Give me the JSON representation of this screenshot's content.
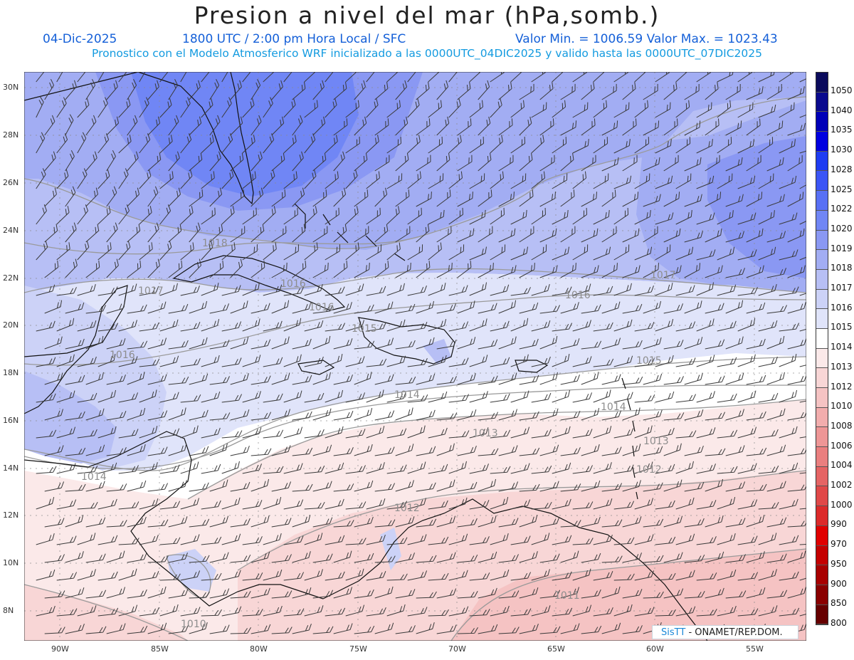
{
  "title": "Presion a nivel del mar (hPa,somb.)",
  "header": {
    "date": "04-Dic-2025",
    "time": "1800 UTC / 2:00 pm Hora Local / SFC",
    "minmax": "Valor Min. = 1006.59   Valor Max. = 1023.43",
    "forecast": "Pronostico con el Modelo Atmosferico WRF inicializado a las 0000UTC_04DIC2025 y valido hasta las  0000UTC_07DIC2025"
  },
  "lat_labels": [
    "30N",
    "28N",
    "26N",
    "24N",
    "22N",
    "20N",
    "18N",
    "16N",
    "14N",
    "12N",
    "10N",
    "8N"
  ],
  "lon_labels": [
    "90W",
    "85W",
    "80W",
    "75W",
    "70W",
    "65W",
    "60W",
    "55W"
  ],
  "isobar_labels": [
    "1018",
    "1017",
    "1017",
    "1016",
    "1016",
    "1016",
    "1016",
    "1015",
    "1015",
    "1014",
    "1014",
    "1014",
    "1013",
    "1013",
    "1012",
    "1012",
    "1011",
    "1010"
  ],
  "colorbar": {
    "labels": [
      "1050",
      "1040",
      "1035",
      "1030",
      "1028",
      "1025",
      "1022",
      "1020",
      "1019",
      "1018",
      "1017",
      "1016",
      "1015",
      "1014",
      "1013",
      "1012",
      "1010",
      "1008",
      "1006",
      "1004",
      "1002",
      "1000",
      "990",
      "970",
      "950",
      "900",
      "850",
      "800"
    ],
    "colors": [
      "#0b0b5c",
      "#0a0a8e",
      "#0000b8",
      "#0000e0",
      "#1e3cf2",
      "#3b55f5",
      "#5870f5",
      "#7086f5",
      "#8a98f3",
      "#a2adf3",
      "#b7bff5",
      "#ccd2f7",
      "#e0e4fa",
      "#ffffff",
      "#fbe9e9",
      "#f8d6d6",
      "#f5c3c3",
      "#f2adad",
      "#ee9696",
      "#ea7f7f",
      "#e56464",
      "#e04848",
      "#dc2a2a",
      "#e00000",
      "#c40000",
      "#a80000",
      "#8a0000",
      "#660000"
    ]
  },
  "credit": {
    "sis": "SisTT",
    "text": "- ONAMET/REP.DOM."
  }
}
